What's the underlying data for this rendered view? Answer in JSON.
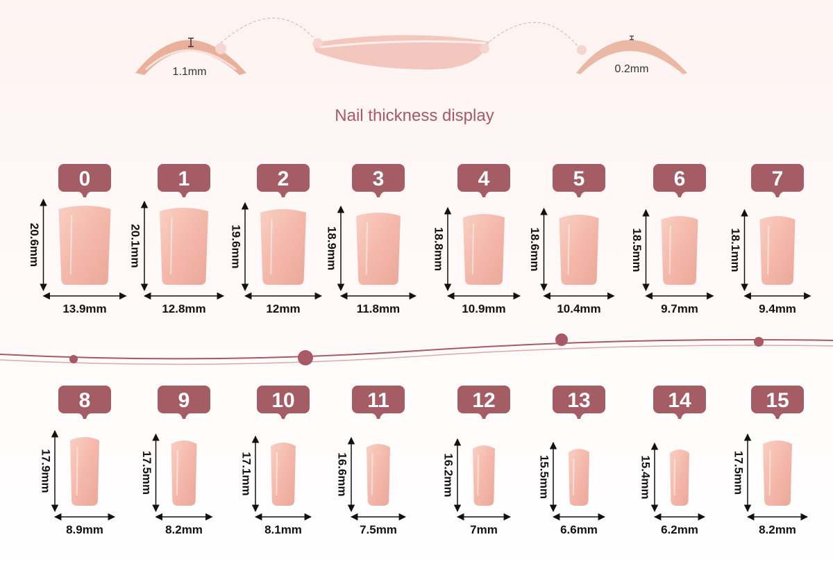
{
  "thickness": {
    "title": "Nail thickness display",
    "thick_label": "1.1mm",
    "thin_label": "0.2mm"
  },
  "nails": [
    {
      "label": "0",
      "length": "20.6mm",
      "width": "13.9mm"
    },
    {
      "label": "1",
      "length": "20.1mm",
      "width": "12.8mm"
    },
    {
      "label": "2",
      "length": "19.6mm",
      "width": "12mm"
    },
    {
      "label": "3",
      "length": "18.9mm",
      "width": "11.8mm"
    },
    {
      "label": "4",
      "length": "18.8mm",
      "width": "10.9mm"
    },
    {
      "label": "5",
      "length": "18.6mm",
      "width": "10.4mm"
    },
    {
      "label": "6",
      "length": "18.5mm",
      "width": "9.7mm"
    },
    {
      "label": "7",
      "length": "18.1mm",
      "width": "9.4mm"
    },
    {
      "label": "8",
      "length": "17.9mm",
      "width": "8.9mm"
    },
    {
      "label": "9",
      "length": "17.5mm",
      "width": "8.2mm"
    },
    {
      "label": "10",
      "length": "17.1mm",
      "width": "8.1mm"
    },
    {
      "label": "11",
      "length": "16.6mm",
      "width": "7.5mm"
    },
    {
      "label": "12",
      "length": "16.2mm",
      "width": "7mm"
    },
    {
      "label": "13",
      "length": "15.5mm",
      "width": "6.6mm"
    },
    {
      "label": "14",
      "length": "15.4mm",
      "width": "6.2mm"
    },
    {
      "label": "15",
      "length": "17.5mm",
      "width": "8.2mm"
    }
  ]
}
